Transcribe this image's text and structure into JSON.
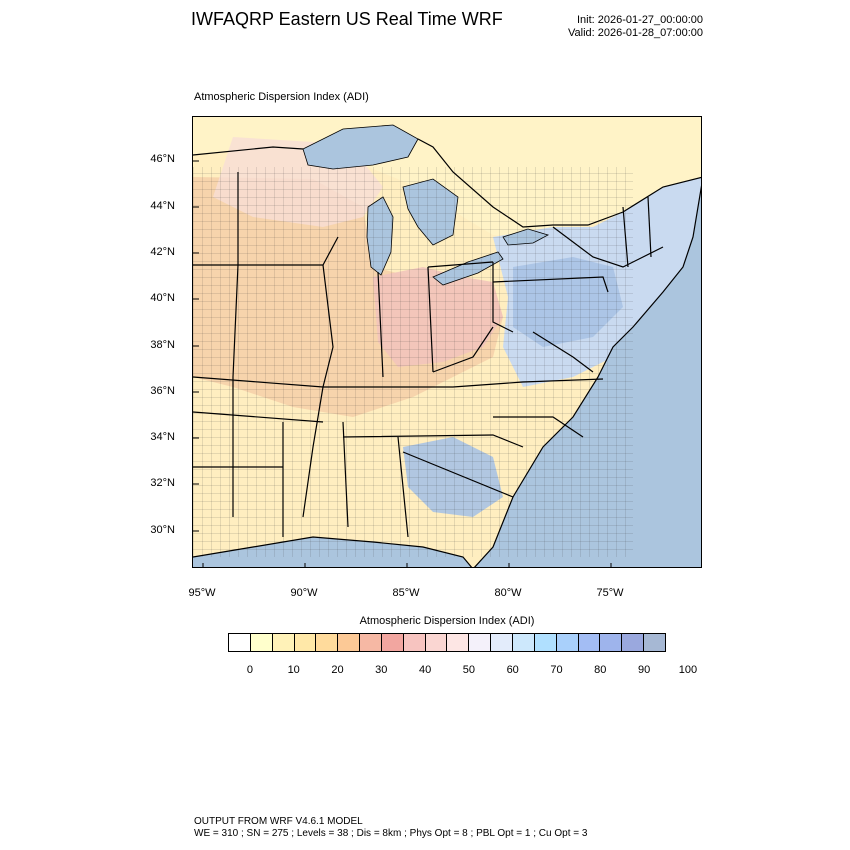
{
  "header": {
    "title": "IWFAQRP Eastern US Real Time WRF",
    "init": "Init: 2026-01-27_00:00:00",
    "valid": "Valid: 2026-01-28_07:00:00"
  },
  "map": {
    "subtitle": "Atmospheric Dispersion Index   (ADI)",
    "lat_labels": [
      "46°N",
      "44°N",
      "42°N",
      "40°N",
      "38°N",
      "36°N",
      "34°N",
      "32°N",
      "30°N"
    ],
    "lon_labels": [
      "95°W",
      "90°W",
      "85°W",
      "80°W",
      "75°W"
    ],
    "region_colors": {
      "land_low": "#ffeec0",
      "land_warm": "#f6cfa8",
      "land_high": "#f2c4bb",
      "land_mid_pink": "#f7ddd6",
      "land_blue": "#c9daf0",
      "land_blue_dark": "#a8c2e4",
      "water": "#abc5de",
      "canada": "#fff3c7",
      "county_line": "#333333",
      "state_line": "#000000"
    }
  },
  "colorbar": {
    "title": "Atmospheric Dispersion Index (ADI)",
    "colors": [
      "#ffffff",
      "#ffffcc",
      "#fff2b8",
      "#ffe8a8",
      "#ffdb9c",
      "#fcc996",
      "#f6b8a4",
      "#f2a6a0",
      "#f7c4c0",
      "#fad6d2",
      "#fde6e4",
      "#f4f1fa",
      "#e3ecfb",
      "#cde8fc",
      "#b0e0ff",
      "#a9d0fb",
      "#a3bdf4",
      "#9eb4ec",
      "#9aa8de",
      "#a6b8d4"
    ],
    "labels": [
      "0",
      "10",
      "20",
      "30",
      "40",
      "50",
      "60",
      "70",
      "80",
      "90",
      "100"
    ]
  },
  "footer": {
    "line1": "OUTPUT FROM WRF V4.6.1 MODEL",
    "line2": "WE = 310 ; SN = 275 ; Levels = 38 ; Dis = 8km ; Phys Opt = 8 ; PBL Opt = 1 ; Cu Opt = 3"
  }
}
